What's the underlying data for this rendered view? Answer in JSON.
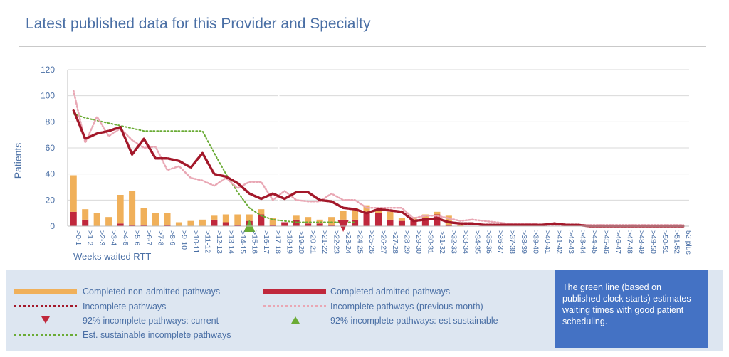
{
  "title": "Latest published data for this Provider and Specialty",
  "note": "The green line (based on published clock starts) estimates waiting times with good patient scheduling.",
  "legend": {
    "non_admitted": "Completed non-admitted pathways",
    "admitted": "Completed admitted pathways",
    "incomplete": "Incomplete pathways",
    "incomplete_prev": "Incomplete pathways (previous month)",
    "marker_current": "92% incomplete pathways: current",
    "marker_sustainable": "92% incomplete pathways: est sustainable",
    "sustainable": "Est. sustainable incomplete pathways"
  },
  "colors": {
    "non_admitted": "#f0b05a",
    "admitted": "#c0283c",
    "incomplete": "#a3182a",
    "incomplete_prev": "#e9a7b4",
    "sustainable": "#6aab35",
    "text": "#4a6fa5",
    "note_bg": "#4472c4"
  },
  "chart_data": {
    "type": "bar",
    "xlabel": "Weeks waited RTT",
    "ylabel": "Patients",
    "ylim": [
      0,
      120
    ],
    "yticks": [
      0,
      20,
      40,
      60,
      80,
      100,
      120
    ],
    "categories": [
      ">0-1",
      ">1-2",
      ">2-3",
      ">3-4",
      ">4-5",
      ">5-6",
      ">6-7",
      ">7-8",
      ">8-9",
      ">9-10",
      ">10-11",
      ">11-12",
      ">12-13",
      ">13-14",
      ">14-15",
      ">15-16",
      ">16-17",
      ">17-18",
      ">18-19",
      ">19-20",
      ">20-21",
      ">21-22",
      ">22-23",
      ">23-24",
      ">24-25",
      ">25-26",
      ">26-27",
      ">27-28",
      ">28-29",
      ">29-30",
      ">30-31",
      ">31-32",
      ">32-33",
      ">33-34",
      ">34-35",
      ">35-36",
      ">36-37",
      ">37-38",
      ">38-39",
      ">39-40",
      ">40-41",
      ">41-42",
      ">42-43",
      ">43-44",
      ">44-45",
      ">45-46",
      ">46-47",
      ">47-48",
      ">48-49",
      ">49-50",
      ">50-51",
      ">51-52",
      "52 plus"
    ],
    "series": [
      {
        "name": "Completed non-admitted pathways",
        "kind": "bar",
        "values": [
          28,
          8,
          10,
          7,
          22,
          26,
          13,
          10,
          9,
          3,
          4,
          5,
          3,
          6,
          8,
          5,
          4,
          5,
          0,
          3,
          5,
          3,
          6,
          7,
          9,
          5,
          3,
          6,
          2,
          2,
          3,
          2,
          7,
          1,
          0,
          0,
          0,
          0,
          0,
          0,
          0,
          0,
          0,
          0,
          0,
          0,
          0,
          0,
          0,
          0,
          0,
          0,
          0
        ]
      },
      {
        "name": "Completed admitted pathways",
        "kind": "bar",
        "values": [
          11,
          5,
          0,
          0,
          2,
          1,
          1,
          0,
          1,
          0,
          0,
          0,
          5,
          3,
          1,
          4,
          9,
          1,
          3,
          5,
          2,
          2,
          1,
          5,
          5,
          11,
          10,
          5,
          4,
          5,
          6,
          9,
          1,
          0,
          0,
          0,
          0,
          0,
          0,
          0,
          0,
          0,
          0,
          0,
          0,
          0,
          0,
          0,
          0,
          0,
          0,
          0,
          0
        ]
      },
      {
        "name": "Incomplete pathways",
        "kind": "line",
        "values": [
          89,
          67,
          71,
          73,
          76,
          55,
          67,
          52,
          52,
          50,
          45,
          56,
          40,
          38,
          33,
          25,
          21,
          25,
          21,
          26,
          26,
          20,
          19,
          14,
          13,
          10,
          13,
          12,
          11,
          4,
          5,
          6,
          3,
          2,
          2,
          1,
          1,
          1,
          1,
          1,
          1,
          2,
          1,
          1,
          0,
          0,
          0,
          0,
          0,
          0,
          0,
          0,
          0
        ]
      },
      {
        "name": "Incomplete pathways (previous month)",
        "kind": "line",
        "values": [
          104,
          64,
          84,
          69,
          75,
          66,
          60,
          61,
          43,
          46,
          37,
          35,
          31,
          37,
          29,
          34,
          34,
          20,
          27,
          20,
          19,
          19,
          25,
          20,
          20,
          14,
          14,
          14,
          14,
          6,
          8,
          8,
          6,
          4,
          5,
          4,
          3,
          2,
          2,
          2,
          1,
          1,
          1,
          1,
          1,
          1,
          1,
          1,
          1,
          1,
          1,
          1,
          1
        ]
      },
      {
        "name": "Est. sustainable incomplete pathways",
        "kind": "line",
        "values": [
          86,
          83,
          81,
          79,
          77,
          75,
          73,
          73,
          73,
          73,
          73,
          73,
          56,
          40,
          26,
          14,
          8,
          5,
          4,
          3,
          3,
          3,
          3,
          3,
          3,
          null,
          null,
          null,
          null,
          null,
          null,
          null,
          null,
          null,
          null,
          null,
          null,
          null,
          null,
          null,
          null,
          null,
          null,
          null,
          null,
          null,
          null,
          null,
          null,
          null,
          null,
          null,
          null
        ]
      }
    ],
    "markers": [
      {
        "name": "92% incomplete pathways: current",
        "category": ">23-24",
        "shape": "triangle-down",
        "color": "#c0283c"
      },
      {
        "name": "92% incomplete pathways: est sustainable",
        "category": ">15-16",
        "shape": "triangle-up",
        "color": "#6aab35"
      }
    ],
    "reference_line_category": ">18-19",
    "grid": true,
    "legend_position": "bottom"
  }
}
